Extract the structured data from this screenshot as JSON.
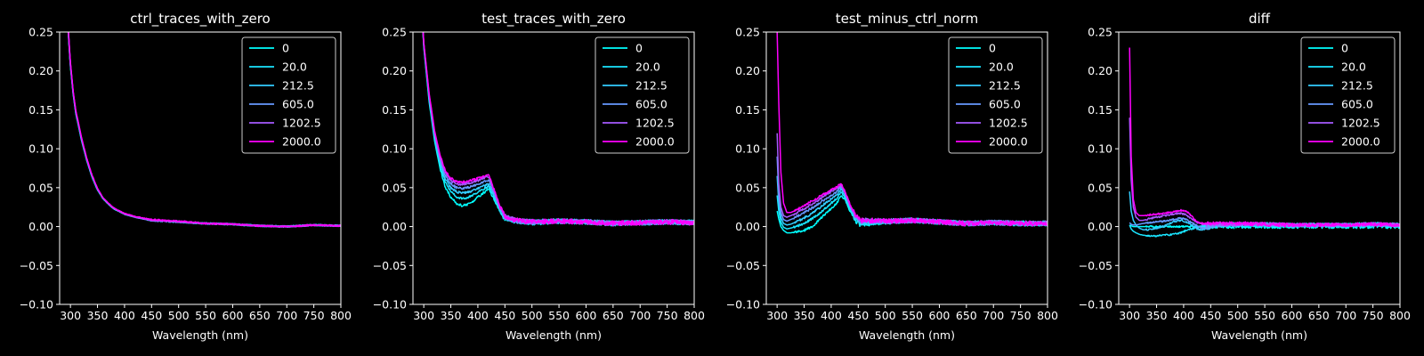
{
  "figure": {
    "background": "#000000",
    "foreground": "#ffffff"
  },
  "chart_data": [
    {
      "type": "line",
      "title": "ctrl_traces_with_zero",
      "xlabel": "Wavelength (nm)",
      "ylabel": "",
      "xlim": [
        280,
        800
      ],
      "ylim": [
        -0.1,
        0.25
      ],
      "xticks": [
        300,
        350,
        400,
        450,
        500,
        550,
        600,
        650,
        700,
        750,
        800
      ],
      "yticks": [
        -0.1,
        -0.05,
        0.0,
        0.05,
        0.1,
        0.15,
        0.2,
        0.25
      ],
      "ytick_labels": [
        "−0.10",
        "−0.05",
        "0.00",
        "0.05",
        "0.10",
        "0.15",
        "0.20",
        "0.25"
      ],
      "legend_position": "upper right",
      "grid": false,
      "x": [
        295,
        300,
        305,
        310,
        320,
        330,
        340,
        350,
        360,
        370,
        380,
        400,
        420,
        450,
        500,
        550,
        600,
        650,
        700,
        750,
        800
      ],
      "series": [
        {
          "name": "0",
          "color": "#00ffff",
          "values": [
            0.26,
            0.205,
            0.17,
            0.145,
            0.112,
            0.085,
            0.063,
            0.047,
            0.036,
            0.029,
            0.023,
            0.016,
            0.012,
            0.008,
            0.006,
            0.004,
            0.003,
            0.001,
            0.0,
            0.002,
            0.001
          ]
        },
        {
          "name": "20.0",
          "color": "#1ae5ff",
          "values": [
            0.262,
            0.206,
            0.171,
            0.146,
            0.113,
            0.086,
            0.064,
            0.048,
            0.036,
            0.029,
            0.023,
            0.016,
            0.012,
            0.008,
            0.006,
            0.004,
            0.003,
            0.001,
            0.0,
            0.002,
            0.001
          ]
        },
        {
          "name": "212.5",
          "color": "#33ccff",
          "values": [
            0.263,
            0.207,
            0.172,
            0.147,
            0.114,
            0.086,
            0.064,
            0.048,
            0.037,
            0.029,
            0.023,
            0.016,
            0.012,
            0.008,
            0.006,
            0.004,
            0.003,
            0.001,
            0.0,
            0.002,
            0.001
          ]
        },
        {
          "name": "605.0",
          "color": "#6699ff",
          "values": [
            0.264,
            0.208,
            0.172,
            0.147,
            0.114,
            0.087,
            0.065,
            0.048,
            0.037,
            0.029,
            0.023,
            0.016,
            0.012,
            0.008,
            0.006,
            0.004,
            0.003,
            0.001,
            0.0,
            0.002,
            0.001
          ]
        },
        {
          "name": "1202.5",
          "color": "#a65aff",
          "values": [
            0.265,
            0.209,
            0.173,
            0.148,
            0.115,
            0.087,
            0.065,
            0.049,
            0.037,
            0.03,
            0.024,
            0.016,
            0.012,
            0.008,
            0.006,
            0.004,
            0.003,
            0.001,
            0.0,
            0.002,
            0.001
          ]
        },
        {
          "name": "2000.0",
          "color": "#ff00ff",
          "values": [
            0.266,
            0.21,
            0.174,
            0.149,
            0.116,
            0.088,
            0.066,
            0.049,
            0.037,
            0.03,
            0.024,
            0.017,
            0.013,
            0.009,
            0.007,
            0.004,
            0.003,
            0.001,
            0.0,
            0.002,
            0.001
          ]
        }
      ]
    },
    {
      "type": "line",
      "title": "test_traces_with_zero",
      "xlabel": "Wavelength (nm)",
      "ylabel": "",
      "xlim": [
        280,
        800
      ],
      "ylim": [
        -0.1,
        0.25
      ],
      "xticks": [
        300,
        350,
        400,
        450,
        500,
        550,
        600,
        650,
        700,
        750,
        800
      ],
      "yticks": [
        -0.1,
        -0.05,
        0.0,
        0.05,
        0.1,
        0.15,
        0.2,
        0.25
      ],
      "ytick_labels": [
        "−0.10",
        "−0.05",
        "0.00",
        "0.05",
        "0.10",
        "0.15",
        "0.20",
        "0.25"
      ],
      "legend_position": "upper right",
      "grid": false,
      "x": [
        295,
        300,
        310,
        320,
        330,
        340,
        350,
        360,
        370,
        380,
        390,
        400,
        410,
        420,
        430,
        440,
        450,
        470,
        500,
        550,
        600,
        650,
        700,
        750,
        800
      ],
      "series": [
        {
          "name": "0",
          "color": "#00ffff",
          "values": [
            0.3,
            0.23,
            0.16,
            0.11,
            0.075,
            0.05,
            0.038,
            0.03,
            0.027,
            0.028,
            0.032,
            0.038,
            0.043,
            0.048,
            0.035,
            0.02,
            0.01,
            0.006,
            0.005,
            0.007,
            0.006,
            0.004,
            0.005,
            0.006,
            0.005
          ]
        },
        {
          "name": "20.0",
          "color": "#1ae5ff",
          "values": [
            0.3,
            0.232,
            0.163,
            0.114,
            0.08,
            0.057,
            0.045,
            0.038,
            0.036,
            0.037,
            0.04,
            0.044,
            0.048,
            0.052,
            0.038,
            0.022,
            0.011,
            0.007,
            0.006,
            0.007,
            0.006,
            0.004,
            0.005,
            0.006,
            0.005
          ]
        },
        {
          "name": "212.5",
          "color": "#33ccff",
          "values": [
            0.3,
            0.233,
            0.165,
            0.116,
            0.083,
            0.061,
            0.05,
            0.045,
            0.043,
            0.044,
            0.046,
            0.049,
            0.052,
            0.055,
            0.04,
            0.023,
            0.012,
            0.007,
            0.006,
            0.007,
            0.006,
            0.004,
            0.005,
            0.006,
            0.005
          ]
        },
        {
          "name": "605.0",
          "color": "#6699ff",
          "values": [
            0.3,
            0.234,
            0.167,
            0.118,
            0.086,
            0.065,
            0.055,
            0.05,
            0.049,
            0.05,
            0.052,
            0.054,
            0.057,
            0.06,
            0.043,
            0.024,
            0.012,
            0.007,
            0.006,
            0.007,
            0.006,
            0.004,
            0.005,
            0.006,
            0.005
          ]
        },
        {
          "name": "1202.5",
          "color": "#a65aff",
          "values": [
            0.3,
            0.235,
            0.169,
            0.121,
            0.089,
            0.069,
            0.059,
            0.055,
            0.054,
            0.055,
            0.057,
            0.059,
            0.062,
            0.064,
            0.046,
            0.026,
            0.013,
            0.008,
            0.006,
            0.007,
            0.006,
            0.004,
            0.005,
            0.006,
            0.005
          ]
        },
        {
          "name": "2000.0",
          "color": "#ff00ff",
          "values": [
            0.3,
            0.236,
            0.171,
            0.123,
            0.092,
            0.072,
            0.062,
            0.058,
            0.057,
            0.058,
            0.06,
            0.062,
            0.064,
            0.066,
            0.048,
            0.027,
            0.013,
            0.008,
            0.006,
            0.007,
            0.006,
            0.004,
            0.005,
            0.006,
            0.005
          ]
        }
      ]
    },
    {
      "type": "line",
      "title": "test_minus_ctrl_norm",
      "xlabel": "Wavelength (nm)",
      "ylabel": "",
      "xlim": [
        280,
        800
      ],
      "ylim": [
        -0.1,
        0.25
      ],
      "xticks": [
        300,
        350,
        400,
        450,
        500,
        550,
        600,
        650,
        700,
        750,
        800
      ],
      "yticks": [
        -0.1,
        -0.05,
        0.0,
        0.05,
        0.1,
        0.15,
        0.2,
        0.25
      ],
      "ytick_labels": [
        "−0.10",
        "−0.05",
        "0.00",
        "0.05",
        "0.10",
        "0.15",
        "0.20",
        "0.25"
      ],
      "legend_position": "upper right",
      "grid": false,
      "x": [
        300,
        303,
        307,
        312,
        318,
        325,
        335,
        350,
        365,
        380,
        395,
        410,
        418,
        425,
        435,
        445,
        455,
        470,
        500,
        550,
        600,
        650,
        700,
        750,
        800
      ],
      "series": [
        {
          "name": "0",
          "color": "#00ffff",
          "values": [
            0.02,
            0.01,
            0.0,
            -0.005,
            -0.008,
            -0.008,
            -0.007,
            -0.005,
            0.0,
            0.01,
            0.02,
            0.03,
            0.04,
            0.035,
            0.02,
            0.008,
            0.002,
            0.004,
            0.006,
            0.008,
            0.006,
            0.004,
            0.005,
            0.004,
            0.004
          ]
        },
        {
          "name": "20.0",
          "color": "#1ae5ff",
          "values": [
            0.04,
            0.02,
            0.006,
            -0.001,
            -0.003,
            -0.002,
            0.0,
            0.004,
            0.01,
            0.018,
            0.027,
            0.036,
            0.044,
            0.038,
            0.022,
            0.01,
            0.004,
            0.005,
            0.006,
            0.008,
            0.006,
            0.004,
            0.005,
            0.004,
            0.004
          ]
        },
        {
          "name": "212.5",
          "color": "#33ccff",
          "values": [
            0.065,
            0.03,
            0.012,
            0.004,
            0.002,
            0.003,
            0.006,
            0.011,
            0.017,
            0.025,
            0.033,
            0.041,
            0.048,
            0.041,
            0.024,
            0.011,
            0.005,
            0.006,
            0.006,
            0.008,
            0.006,
            0.004,
            0.005,
            0.004,
            0.004
          ]
        },
        {
          "name": "605.0",
          "color": "#6699ff",
          "values": [
            0.09,
            0.04,
            0.018,
            0.009,
            0.007,
            0.009,
            0.012,
            0.018,
            0.024,
            0.031,
            0.038,
            0.045,
            0.051,
            0.043,
            0.026,
            0.012,
            0.006,
            0.007,
            0.007,
            0.008,
            0.006,
            0.004,
            0.005,
            0.004,
            0.004
          ]
        },
        {
          "name": "1202.5",
          "color": "#a65aff",
          "values": [
            0.12,
            0.055,
            0.025,
            0.014,
            0.012,
            0.014,
            0.017,
            0.023,
            0.029,
            0.036,
            0.043,
            0.049,
            0.053,
            0.045,
            0.027,
            0.013,
            0.007,
            0.008,
            0.007,
            0.008,
            0.006,
            0.004,
            0.005,
            0.004,
            0.004
          ]
        },
        {
          "name": "2000.0",
          "color": "#ff00ff",
          "values": [
            0.25,
            0.16,
            0.07,
            0.03,
            0.018,
            0.018,
            0.021,
            0.027,
            0.033,
            0.039,
            0.045,
            0.051,
            0.055,
            0.046,
            0.028,
            0.014,
            0.008,
            0.008,
            0.007,
            0.008,
            0.006,
            0.004,
            0.005,
            0.004,
            0.004
          ]
        }
      ]
    },
    {
      "type": "line",
      "title": "diff",
      "xlabel": "Wavelength (nm)",
      "ylabel": "",
      "xlim": [
        280,
        800
      ],
      "ylim": [
        -0.1,
        0.25
      ],
      "xticks": [
        300,
        350,
        400,
        450,
        500,
        550,
        600,
        650,
        700,
        750,
        800
      ],
      "yticks": [
        -0.1,
        -0.05,
        0.0,
        0.05,
        0.1,
        0.15,
        0.2,
        0.25
      ],
      "ytick_labels": [
        "−0.10",
        "−0.05",
        "0.00",
        "0.05",
        "0.10",
        "0.15",
        "0.20",
        "0.25"
      ],
      "legend_position": "upper right",
      "grid": false,
      "x": [
        300,
        303,
        307,
        312,
        318,
        325,
        335,
        350,
        365,
        380,
        395,
        405,
        415,
        425,
        435,
        445,
        455,
        470,
        500,
        550,
        600,
        650,
        700,
        750,
        800
      ],
      "series": [
        {
          "name": "0",
          "color": "#00ffff",
          "values": [
            0.002,
            0.001,
            0.0,
            0.0,
            0.0,
            0.0,
            0.0,
            0.0,
            0.0,
            0.0,
            0.0,
            0.0,
            0.0,
            0.0,
            0.0,
            0.0,
            0.0,
            0.0,
            0.0,
            0.0,
            0.0,
            0.0,
            0.0,
            0.0,
            0.0
          ]
        },
        {
          "name": "20.0",
          "color": "#1ae5ff",
          "values": [
            0.002,
            -0.003,
            -0.006,
            -0.008,
            -0.01,
            -0.011,
            -0.012,
            -0.012,
            -0.011,
            -0.01,
            -0.008,
            -0.005,
            -0.003,
            -0.001,
            0.001,
            0.002,
            0.003,
            0.003,
            0.003,
            0.003,
            0.002,
            0.002,
            0.002,
            0.003,
            0.002
          ]
        },
        {
          "name": "212.5",
          "color": "#33ccff",
          "values": [
            0.045,
            0.02,
            0.008,
            0.002,
            -0.002,
            -0.004,
            -0.004,
            -0.002,
            0.001,
            0.006,
            0.008,
            0.006,
            0.002,
            -0.003,
            -0.004,
            -0.002,
            0.0,
            0.002,
            0.003,
            0.003,
            0.002,
            0.002,
            0.002,
            0.003,
            0.002
          ]
        },
        {
          "name": "605.0",
          "color": "#6699ff",
          "values": [
            0.005,
            0.003,
            0.002,
            0.002,
            0.003,
            0.004,
            0.005,
            0.006,
            0.007,
            0.009,
            0.011,
            0.009,
            0.005,
            0.001,
            -0.002,
            -0.001,
            0.001,
            0.002,
            0.003,
            0.003,
            0.002,
            0.002,
            0.002,
            0.003,
            0.002
          ]
        },
        {
          "name": "1202.5",
          "color": "#a65aff",
          "values": [
            0.14,
            0.06,
            0.025,
            0.012,
            0.008,
            0.008,
            0.01,
            0.012,
            0.014,
            0.016,
            0.017,
            0.015,
            0.01,
            0.005,
            0.003,
            0.003,
            0.003,
            0.003,
            0.003,
            0.003,
            0.002,
            0.002,
            0.002,
            0.003,
            0.002
          ]
        },
        {
          "name": "2000.0",
          "color": "#ff00ff",
          "values": [
            0.23,
            0.09,
            0.035,
            0.018,
            0.014,
            0.014,
            0.015,
            0.016,
            0.017,
            0.019,
            0.021,
            0.02,
            0.013,
            0.006,
            0.004,
            0.004,
            0.004,
            0.004,
            0.004,
            0.003,
            0.002,
            0.002,
            0.002,
            0.003,
            0.002
          ]
        }
      ]
    }
  ]
}
